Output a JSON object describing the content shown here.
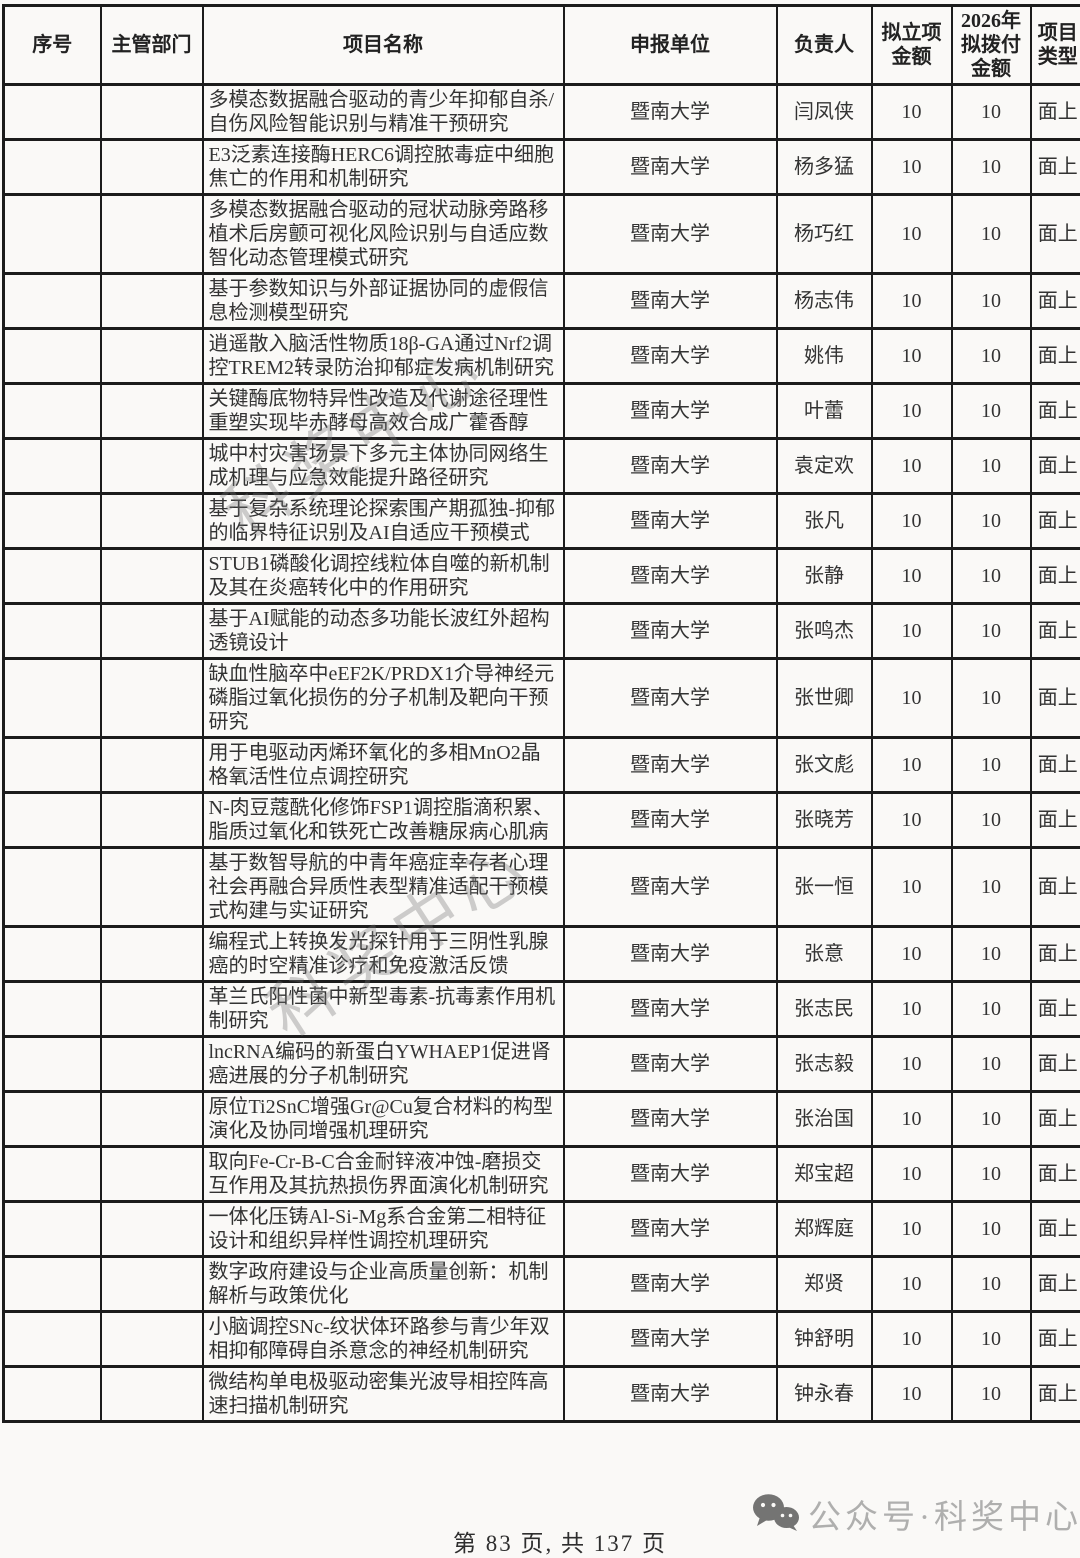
{
  "page": {
    "footer_page_info": "第 83 页, 共 137 页"
  },
  "watermark": {
    "diagonal_text": "科奖中心",
    "brand_text": "公众号·科奖中心"
  },
  "colors": {
    "background": "#faf9f7",
    "border": "#1c1c1c",
    "text": "#333333",
    "watermark_gray": "#999999",
    "brand_gray": "#b0b0b0",
    "wechat_icon_gray": "#4f4f4f"
  },
  "table": {
    "headers": [
      "序号",
      "主管部门",
      "项目名称",
      "申报单位",
      "负责人",
      "拟立项金额",
      "2026年拟拨付金额",
      "项目类型"
    ],
    "rows": [
      {
        "seq": "",
        "dept": "",
        "project": "多模态数据融合驱动的青少年抑郁自杀/自伤风险智能识别与精准干预研究",
        "org": "暨南大学",
        "leader": "闫凤侠",
        "amount": "10",
        "allocation_2026": "10",
        "type": "面上"
      },
      {
        "seq": "",
        "dept": "",
        "project": "E3泛素连接酶HERC6调控脓毒症中细胞焦亡的作用和机制研究",
        "org": "暨南大学",
        "leader": "杨多猛",
        "amount": "10",
        "allocation_2026": "10",
        "type": "面上"
      },
      {
        "seq": "",
        "dept": "",
        "project": "多模态数据融合驱动的冠状动脉旁路移植术后房颤可视化风险识别与自适应数智化动态管理模式研究",
        "org": "暨南大学",
        "leader": "杨巧红",
        "amount": "10",
        "allocation_2026": "10",
        "type": "面上"
      },
      {
        "seq": "",
        "dept": "",
        "project": "基于参数知识与外部证据协同的虚假信息检测模型研究",
        "org": "暨南大学",
        "leader": "杨志伟",
        "amount": "10",
        "allocation_2026": "10",
        "type": "面上"
      },
      {
        "seq": "",
        "dept": "",
        "project": "逍遥散入脑活性物质18β-GA通过Nrf2调控TREM2转录防治抑郁症发病机制研究",
        "org": "暨南大学",
        "leader": "姚伟",
        "amount": "10",
        "allocation_2026": "10",
        "type": "面上"
      },
      {
        "seq": "",
        "dept": "",
        "project": "关键酶底物特异性改造及代谢途径理性重塑实现毕赤酵母高效合成广藿香醇",
        "org": "暨南大学",
        "leader": "叶蕾",
        "amount": "10",
        "allocation_2026": "10",
        "type": "面上"
      },
      {
        "seq": "",
        "dept": "",
        "project": "城中村灾害场景下多元主体协同网络生成机理与应急效能提升路径研究",
        "org": "暨南大学",
        "leader": "袁定欢",
        "amount": "10",
        "allocation_2026": "10",
        "type": "面上"
      },
      {
        "seq": "",
        "dept": "",
        "project": "基于复杂系统理论探索围产期孤独-抑郁的临界特征识别及AI自适应干预模式",
        "org": "暨南大学",
        "leader": "张凡",
        "amount": "10",
        "allocation_2026": "10",
        "type": "面上"
      },
      {
        "seq": "",
        "dept": "",
        "project": "STUB1磷酸化调控线粒体自噬的新机制及其在炎癌转化中的作用研究",
        "org": "暨南大学",
        "leader": "张静",
        "amount": "10",
        "allocation_2026": "10",
        "type": "面上"
      },
      {
        "seq": "",
        "dept": "",
        "project": "基于AI赋能的动态多功能长波红外超构透镜设计",
        "org": "暨南大学",
        "leader": "张鸣杰",
        "amount": "10",
        "allocation_2026": "10",
        "type": "面上"
      },
      {
        "seq": "",
        "dept": "",
        "project": "缺血性脑卒中eEF2K/PRDX1介导神经元磷脂过氧化损伤的分子机制及靶向干预研究",
        "org": "暨南大学",
        "leader": "张世卿",
        "amount": "10",
        "allocation_2026": "10",
        "type": "面上"
      },
      {
        "seq": "",
        "dept": "",
        "project": "用于电驱动丙烯环氧化的多相MnO2晶格氧活性位点调控研究",
        "org": "暨南大学",
        "leader": "张文彪",
        "amount": "10",
        "allocation_2026": "10",
        "type": "面上"
      },
      {
        "seq": "",
        "dept": "",
        "project": "N-肉豆蔻酰化修饰FSP1调控脂滴积累、脂质过氧化和铁死亡改善糖尿病心肌病",
        "org": "暨南大学",
        "leader": "张晓芳",
        "amount": "10",
        "allocation_2026": "10",
        "type": "面上"
      },
      {
        "seq": "",
        "dept": "",
        "project": "基于数智导航的中青年癌症幸存者心理社会再融合异质性表型精准适配干预模式构建与实证研究",
        "org": "暨南大学",
        "leader": "张一恒",
        "amount": "10",
        "allocation_2026": "10",
        "type": "面上"
      },
      {
        "seq": "",
        "dept": "",
        "project": "编程式上转换发光探针用于三阴性乳腺癌的时空精准诊疗和免疫激活反馈",
        "org": "暨南大学",
        "leader": "张意",
        "amount": "10",
        "allocation_2026": "10",
        "type": "面上"
      },
      {
        "seq": "",
        "dept": "",
        "project": "革兰氏阳性菌中新型毒素-抗毒素作用机制研究",
        "org": "暨南大学",
        "leader": "张志民",
        "amount": "10",
        "allocation_2026": "10",
        "type": "面上"
      },
      {
        "seq": "",
        "dept": "",
        "project": "lncRNA编码的新蛋白YWHAEP1促进肾癌进展的分子机制研究",
        "org": "暨南大学",
        "leader": "张志毅",
        "amount": "10",
        "allocation_2026": "10",
        "type": "面上"
      },
      {
        "seq": "",
        "dept": "",
        "project": "原位Ti2SnC增强Gr@Cu复合材料的构型演化及协同增强机理研究",
        "org": "暨南大学",
        "leader": "张治国",
        "amount": "10",
        "allocation_2026": "10",
        "type": "面上"
      },
      {
        "seq": "",
        "dept": "",
        "project": "取向Fe-Cr-B-C合金耐锌液冲蚀-磨损交互作用及其抗热损伤界面演化机制研究",
        "org": "暨南大学",
        "leader": "郑宝超",
        "amount": "10",
        "allocation_2026": "10",
        "type": "面上"
      },
      {
        "seq": "",
        "dept": "",
        "project": "一体化压铸Al-Si-Mg系合金第二相特征设计和组织异样性调控机理研究",
        "org": "暨南大学",
        "leader": "郑辉庭",
        "amount": "10",
        "allocation_2026": "10",
        "type": "面上"
      },
      {
        "seq": "",
        "dept": "",
        "project": "数字政府建设与企业高质量创新：机制解析与政策优化",
        "org": "暨南大学",
        "leader": "郑贤",
        "amount": "10",
        "allocation_2026": "10",
        "type": "面上"
      },
      {
        "seq": "",
        "dept": "",
        "project": "小脑调控SNc-纹状体环路参与青少年双相抑郁障碍自杀意念的神经机制研究",
        "org": "暨南大学",
        "leader": "钟舒明",
        "amount": "10",
        "allocation_2026": "10",
        "type": "面上"
      },
      {
        "seq": "",
        "dept": "",
        "project": "微结构单电极驱动密集光波导相控阵高速扫描机制研究",
        "org": "暨南大学",
        "leader": "钟永春",
        "amount": "10",
        "allocation_2026": "10",
        "type": "面上"
      }
    ]
  }
}
